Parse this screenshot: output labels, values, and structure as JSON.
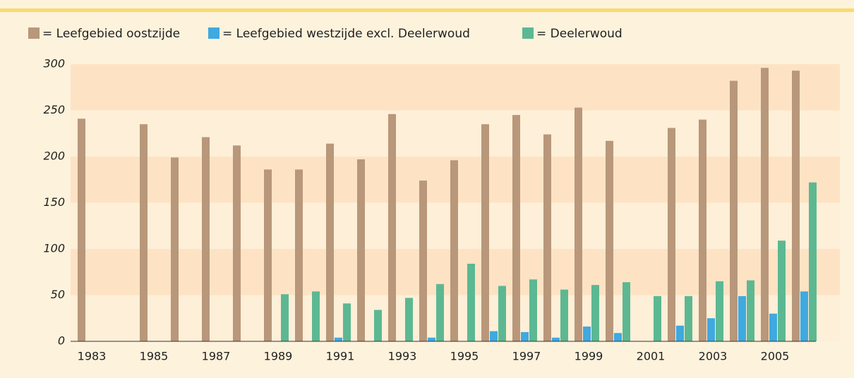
{
  "chart_data": {
    "type": "bar",
    "categories": [
      "1983",
      null,
      "1985",
      null,
      "1987",
      null,
      "1989",
      null,
      "1991",
      null,
      "1993",
      null,
      "1995",
      null,
      "1997",
      null,
      "1999",
      null,
      "2001",
      null,
      "2003",
      null,
      "2005",
      null
    ],
    "series": [
      {
        "name": "= Leefgebied oostzijde",
        "color": "#b8977a",
        "values": [
          241,
          null,
          235,
          199,
          221,
          212,
          186,
          186,
          214,
          197,
          246,
          174,
          196,
          235,
          245,
          224,
          253,
          217,
          null,
          231,
          240,
          282,
          296,
          293
        ]
      },
      {
        "name": "= Leefgebied westzijde excl. Deelerwoud",
        "color": "#3fa9e0",
        "values": [
          null,
          null,
          null,
          null,
          null,
          null,
          null,
          null,
          4,
          null,
          null,
          4,
          null,
          11,
          10,
          4,
          16,
          9,
          null,
          17,
          25,
          49,
          30,
          54
        ]
      },
      {
        "name": "= Deelerwoud",
        "color": "#5cb892",
        "values": [
          null,
          null,
          null,
          null,
          null,
          null,
          51,
          54,
          41,
          34,
          47,
          62,
          84,
          60,
          67,
          56,
          61,
          64,
          49,
          49,
          65,
          66,
          109,
          172
        ]
      }
    ],
    "ylim": [
      0,
      300
    ],
    "yticks": [
      0,
      50,
      100,
      150,
      200,
      250,
      300
    ],
    "grid": true
  }
}
